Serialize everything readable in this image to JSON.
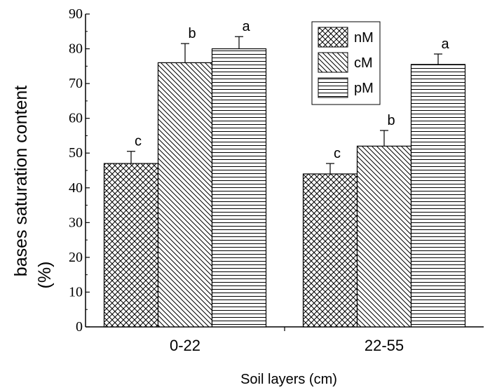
{
  "chart_data": {
    "type": "bar",
    "title": "",
    "xlabel": "Soil layers (cm)",
    "ylabel_line1": "bases saturation content",
    "ylabel_line2": "(%)",
    "ylim": [
      0,
      90
    ],
    "yticks": [
      0,
      10,
      20,
      30,
      40,
      50,
      60,
      70,
      80,
      90
    ],
    "categories": [
      "0-22",
      "22-55"
    ],
    "series": [
      {
        "name": "nM",
        "pattern": "crosshatch",
        "values": [
          47,
          44
        ],
        "errors": [
          3.5,
          3
        ],
        "letters": [
          "c",
          "c"
        ]
      },
      {
        "name": "cM",
        "pattern": "diagonal",
        "values": [
          76,
          52
        ],
        "errors": [
          5.5,
          4.5
        ],
        "letters": [
          "b",
          "b"
        ]
      },
      {
        "name": "pM",
        "pattern": "horizontal",
        "values": [
          80,
          75.5
        ],
        "errors": [
          3.5,
          3
        ],
        "letters": [
          "a",
          "a"
        ]
      }
    ],
    "legend_position": "top-right",
    "grid": false,
    "colors": {
      "stroke": "#000000",
      "fill": "#ffffff"
    }
  }
}
